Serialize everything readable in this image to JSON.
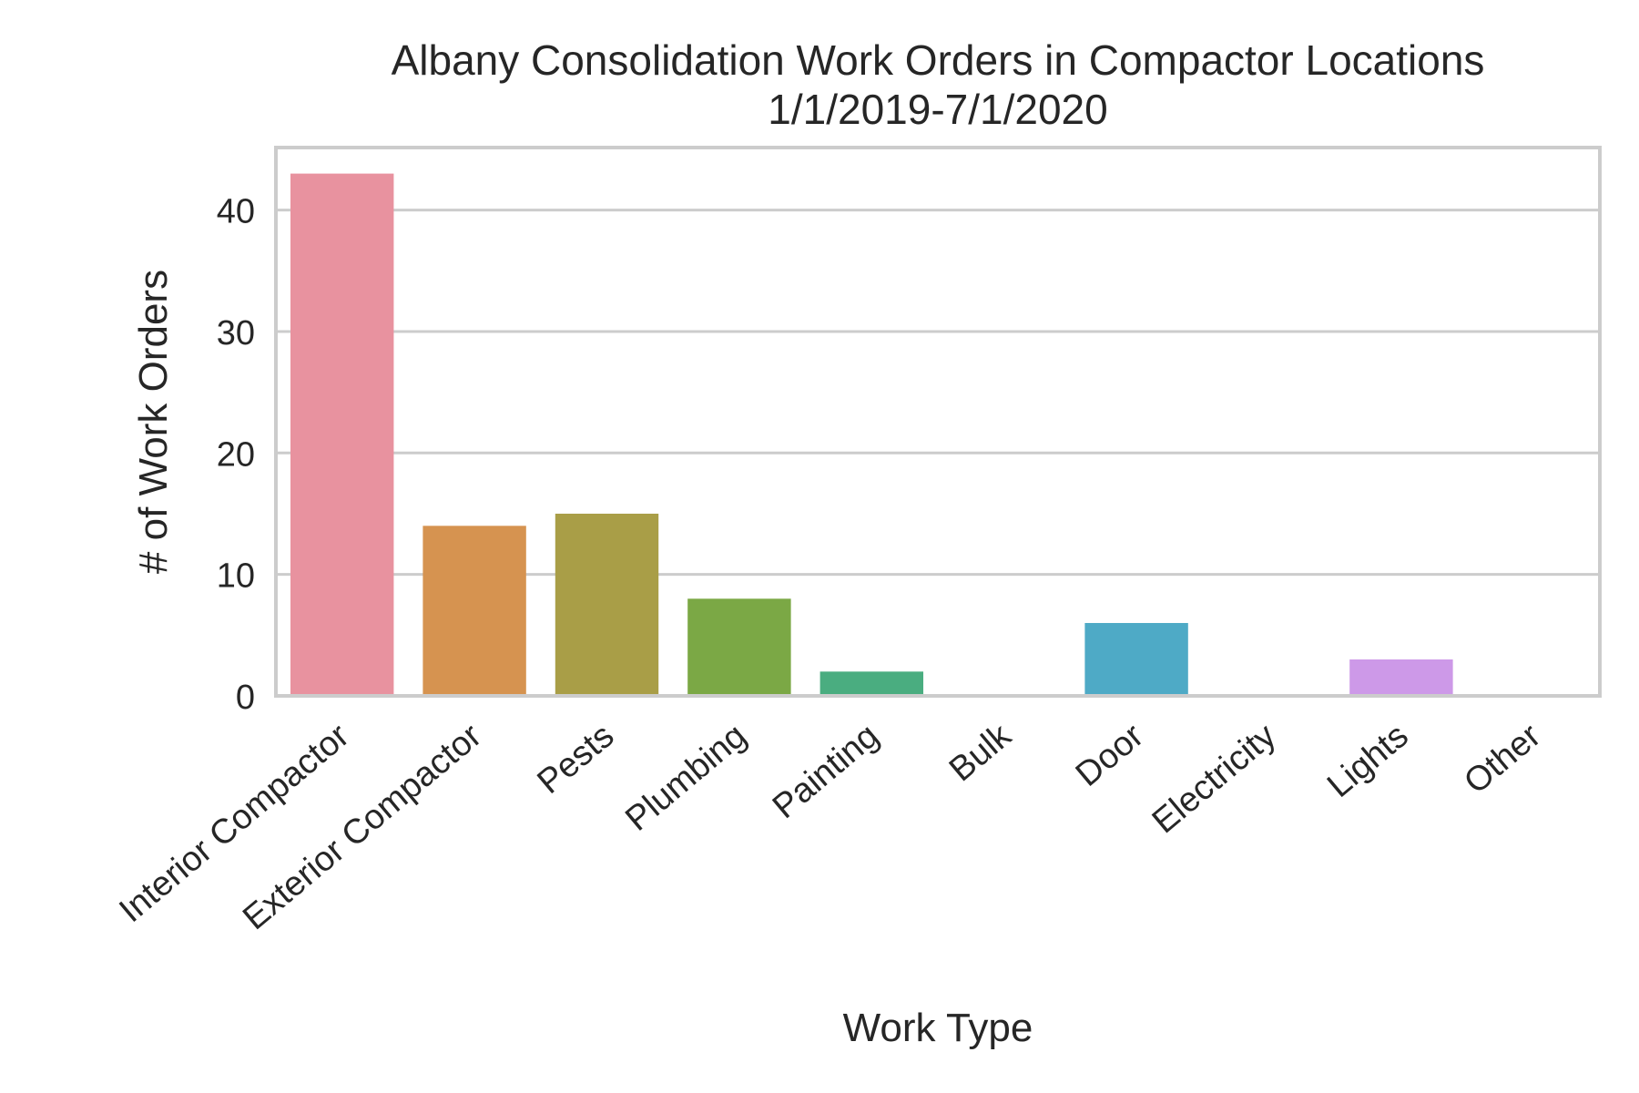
{
  "chart_data": {
    "type": "bar",
    "title": "Albany Consolidation Work Orders in Compactor Locations",
    "subtitle": "1/1/2019-7/1/2020",
    "xlabel": "Work Type",
    "ylabel": "# of Work Orders",
    "categories": [
      "Interior Compactor",
      "Exterior Compactor",
      "Pests",
      "Plumbing",
      "Painting",
      "Bulk",
      "Door",
      "Electricity",
      "Lights",
      "Other"
    ],
    "values": [
      43,
      14,
      15,
      8,
      2,
      0,
      6,
      0,
      3,
      0
    ],
    "colors": [
      "#e8929f",
      "#d69350",
      "#a99e47",
      "#7ba845",
      "#4aad80",
      "#4ea99b",
      "#4eaac6",
      "#8fa0e6",
      "#cd99e8",
      "#e68fc6"
    ],
    "ylim": [
      0,
      45
    ],
    "yticks": [
      0,
      10,
      20,
      30,
      40
    ],
    "grid": true
  }
}
